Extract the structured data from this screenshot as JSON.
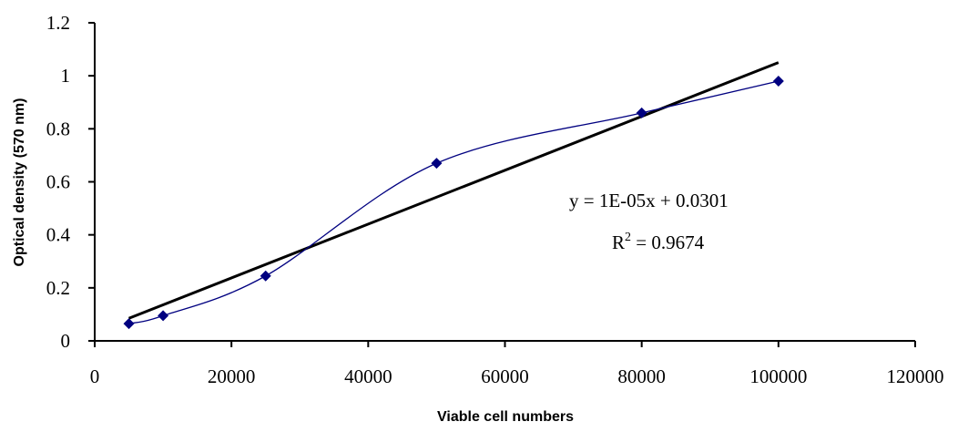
{
  "chart_data": {
    "type": "scatter",
    "x_label": "Viable cell numbers",
    "y_label": "Optical density (570 nm)",
    "x": [
      5000,
      10000,
      25000,
      50000,
      80000,
      100000
    ],
    "series": [
      {
        "color": "#000080",
        "values": [
          0.065,
          0.095,
          0.245,
          0.67,
          0.86,
          0.98
        ]
      }
    ],
    "trendline": {
      "color": "#000000",
      "x": [
        5000,
        100000
      ],
      "values": [
        0.085,
        1.05
      ]
    },
    "equation": "y = 1E-05x + 0.0301",
    "r_squared": {
      "symbol": "R",
      "exponent": "2",
      "text": " = 0.9674"
    },
    "xlim": [
      0,
      120000
    ],
    "xticks": [
      0,
      20000,
      40000,
      60000,
      80000,
      100000,
      120000
    ],
    "ylim": [
      0,
      1.2
    ],
    "yticks": [
      0,
      0.2,
      0.4,
      0.6,
      0.8,
      1,
      1.2
    ],
    "grid": false
  }
}
